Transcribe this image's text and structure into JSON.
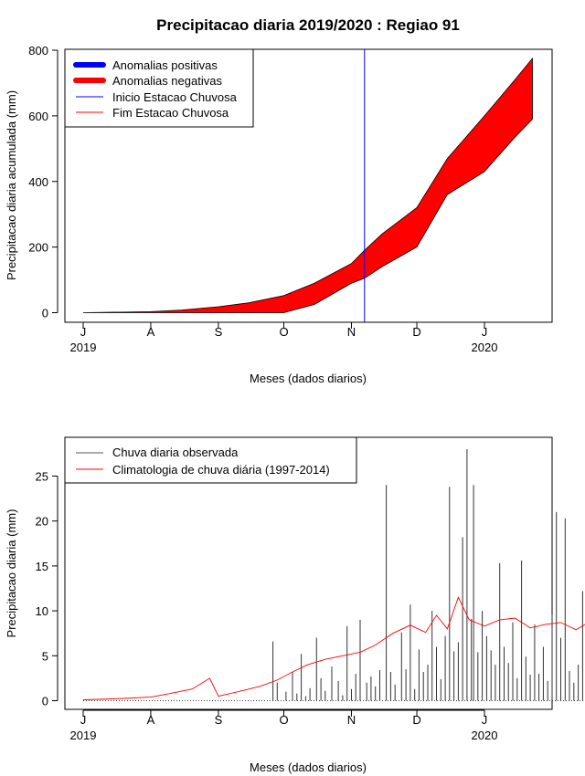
{
  "figure": {
    "title": "Precipitacao diaria 2019/2020 : Regiao 91"
  },
  "chart_data": [
    {
      "type": "area",
      "title": "Precipitacao diaria 2019/2020 : Regiao 91",
      "xlabel": "Meses (dados diarios)",
      "ylabel": "Precipitacao diaria acumulada (mm)",
      "x_month_ticks": [
        "J",
        "A",
        "S",
        "O",
        "N",
        "D",
        "J"
      ],
      "x_year_labels": [
        "2019",
        "2020"
      ],
      "ylim": [
        0,
        800
      ],
      "y_ticks": [
        0,
        200,
        400,
        600,
        800
      ],
      "grid": false,
      "legend_position": "top-left",
      "legend": [
        {
          "label": "Anomalias positivas",
          "color": "#0000ff",
          "kind": "thick-line"
        },
        {
          "label": "Anomalias negativas",
          "color": "#ff0000",
          "kind": "thick-line"
        },
        {
          "label": "Inicio Estacao Chuvosa",
          "color": "#0000ff",
          "kind": "line"
        },
        {
          "label": "Fim Estacao Chuvosa",
          "color": "#ff0000",
          "kind": "line"
        }
      ],
      "x_dates": [
        "2019-07-01",
        "2019-08-01",
        "2019-08-15",
        "2019-09-01",
        "2019-09-15",
        "2019-10-01",
        "2019-10-15",
        "2019-11-01",
        "2019-11-07",
        "2019-11-15",
        "2019-12-01",
        "2019-12-15",
        "2020-01-01",
        "2020-01-15",
        "2020-01-23"
      ],
      "series": [
        {
          "role": "climatology_accumulated",
          "values": [
            0,
            3,
            8,
            18,
            30,
            52,
            90,
            150,
            190,
            240,
            320,
            470,
            600,
            710,
            775
          ]
        },
        {
          "role": "observed_accumulated",
          "values": [
            0,
            0,
            0,
            0,
            0,
            0,
            25,
            90,
            105,
            140,
            200,
            360,
            430,
            535,
            590
          ]
        }
      ],
      "season_start": "2019-11-07",
      "anomaly_fill_color": "#ff0000",
      "season_start_color": "#0000ff"
    },
    {
      "type": "bar",
      "xlabel": "Meses (dados diarios)",
      "ylabel": "Precipitacao diaria (mm)",
      "x_month_ticks": [
        "J",
        "A",
        "S",
        "O",
        "N",
        "D",
        "J"
      ],
      "x_year_labels": [
        "2019",
        "2020"
      ],
      "ylim": [
        0,
        28
      ],
      "y_ticks": [
        0,
        5,
        10,
        15,
        20,
        25
      ],
      "grid": false,
      "legend_position": "top-left",
      "legend": [
        {
          "label": "Chuva diaria observada",
          "color": "#000000"
        },
        {
          "label": "Climatologia de chuva diária (1997-2014)",
          "color": "#ff0000"
        }
      ],
      "observed_daily_bars": [
        {
          "date": "2019-09-26",
          "value": 6.6
        },
        {
          "date": "2019-09-28",
          "value": 2.0
        },
        {
          "date": "2019-10-02",
          "value": 1.0
        },
        {
          "date": "2019-10-05",
          "value": 3.2
        },
        {
          "date": "2019-10-07",
          "value": 0.8
        },
        {
          "date": "2019-10-09",
          "value": 5.2
        },
        {
          "date": "2019-10-11",
          "value": 0.5
        },
        {
          "date": "2019-10-13",
          "value": 1.4
        },
        {
          "date": "2019-10-16",
          "value": 7.0
        },
        {
          "date": "2019-10-18",
          "value": 2.5
        },
        {
          "date": "2019-10-20",
          "value": 1.1
        },
        {
          "date": "2019-10-23",
          "value": 3.8
        },
        {
          "date": "2019-10-26",
          "value": 2.2
        },
        {
          "date": "2019-10-28",
          "value": 0.6
        },
        {
          "date": "2019-10-30",
          "value": 8.3
        },
        {
          "date": "2019-11-01",
          "value": 1.3
        },
        {
          "date": "2019-11-03",
          "value": 3.0
        },
        {
          "date": "2019-11-05",
          "value": 9.0
        },
        {
          "date": "2019-11-08",
          "value": 2.0
        },
        {
          "date": "2019-11-10",
          "value": 2.7
        },
        {
          "date": "2019-11-12",
          "value": 1.6
        },
        {
          "date": "2019-11-14",
          "value": 3.4
        },
        {
          "date": "2019-11-17",
          "value": 24.0
        },
        {
          "date": "2019-11-19",
          "value": 3.2
        },
        {
          "date": "2019-11-21",
          "value": 1.8
        },
        {
          "date": "2019-11-24",
          "value": 7.6
        },
        {
          "date": "2019-11-26",
          "value": 3.5
        },
        {
          "date": "2019-11-28",
          "value": 10.7
        },
        {
          "date": "2019-11-30",
          "value": 1.3
        },
        {
          "date": "2019-12-02",
          "value": 5.7
        },
        {
          "date": "2019-12-04",
          "value": 3.2
        },
        {
          "date": "2019-12-06",
          "value": 4.0
        },
        {
          "date": "2019-12-08",
          "value": 10.0
        },
        {
          "date": "2019-12-10",
          "value": 6.0
        },
        {
          "date": "2019-12-12",
          "value": 2.4
        },
        {
          "date": "2019-12-14",
          "value": 7.2
        },
        {
          "date": "2019-12-16",
          "value": 23.8
        },
        {
          "date": "2019-12-18",
          "value": 5.5
        },
        {
          "date": "2019-12-20",
          "value": 6.5
        },
        {
          "date": "2019-12-22",
          "value": 18.2
        },
        {
          "date": "2019-12-24",
          "value": 28.0
        },
        {
          "date": "2019-12-26",
          "value": 9.1
        },
        {
          "date": "2019-12-27",
          "value": 24.0
        },
        {
          "date": "2019-12-29",
          "value": 5.4
        },
        {
          "date": "2019-12-31",
          "value": 10.0
        },
        {
          "date": "2020-01-02",
          "value": 7.2
        },
        {
          "date": "2020-01-04",
          "value": 5.6
        },
        {
          "date": "2020-01-06",
          "value": 4.0
        },
        {
          "date": "2020-01-08",
          "value": 15.3
        },
        {
          "date": "2020-01-10",
          "value": 6.0
        },
        {
          "date": "2020-01-12",
          "value": 4.2
        },
        {
          "date": "2020-01-14",
          "value": 8.7
        },
        {
          "date": "2020-01-16",
          "value": 2.5
        },
        {
          "date": "2020-01-18",
          "value": 15.6
        },
        {
          "date": "2020-01-20",
          "value": 4.9
        },
        {
          "date": "2020-01-22",
          "value": 2.9
        },
        {
          "date": "2020-01-24",
          "value": 8.5
        },
        {
          "date": "2020-01-26",
          "value": 3.0
        },
        {
          "date": "2020-01-28",
          "value": 6.0
        },
        {
          "date": "2020-01-30",
          "value": 2.2
        },
        {
          "date": "2020-02-01",
          "value": 9.6
        },
        {
          "date": "2020-02-03",
          "value": 21.0
        },
        {
          "date": "2020-02-05",
          "value": 7.0
        },
        {
          "date": "2020-02-07",
          "value": 20.3
        },
        {
          "date": "2020-02-09",
          "value": 3.3
        },
        {
          "date": "2020-02-11",
          "value": 2.0
        },
        {
          "date": "2020-02-13",
          "value": 4.0
        },
        {
          "date": "2020-02-15",
          "value": 12.2
        },
        {
          "date": "2020-02-17",
          "value": 1.5
        },
        {
          "date": "2020-02-19",
          "value": 2.6
        },
        {
          "date": "2020-02-21",
          "value": 11.0
        },
        {
          "date": "2020-02-23",
          "value": 3.0
        }
      ],
      "climatology_daily": {
        "x_dates": [
          "2019-07-01",
          "2019-07-15",
          "2019-08-01",
          "2019-08-10",
          "2019-08-20",
          "2019-08-28",
          "2019-09-01",
          "2019-09-10",
          "2019-09-20",
          "2019-09-28",
          "2019-10-05",
          "2019-10-12",
          "2019-10-20",
          "2019-10-28",
          "2019-11-05",
          "2019-11-12",
          "2019-11-20",
          "2019-11-28",
          "2019-12-05",
          "2019-12-10",
          "2019-12-15",
          "2019-12-20",
          "2019-12-25",
          "2020-01-01",
          "2020-01-08",
          "2020-01-15",
          "2020-01-22",
          "2020-01-29",
          "2020-02-05",
          "2020-02-12",
          "2020-02-19",
          "2020-02-26",
          "2020-03-01"
        ],
        "values": [
          0.1,
          0.2,
          0.4,
          0.8,
          1.3,
          2.5,
          0.5,
          1.0,
          1.6,
          2.3,
          3.2,
          4.0,
          4.6,
          5.0,
          5.4,
          6.2,
          7.5,
          8.4,
          7.6,
          9.5,
          8.0,
          11.5,
          9.0,
          8.3,
          9.0,
          9.2,
          8.1,
          8.5,
          8.7,
          7.9,
          8.9,
          8.5,
          10.2
        ]
      }
    }
  ]
}
